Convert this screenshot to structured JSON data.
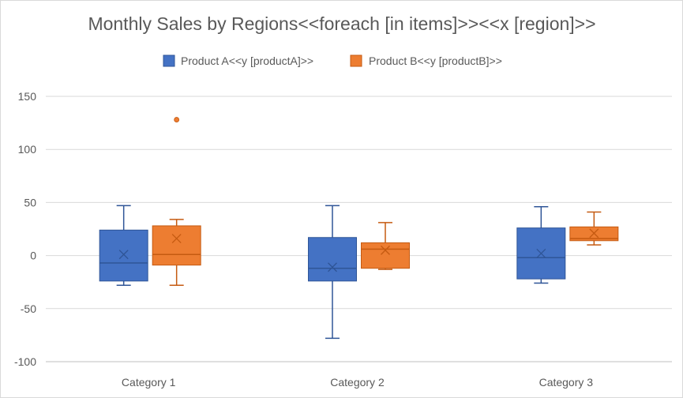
{
  "chart_data": {
    "type": "box",
    "title": "Monthly Sales by Regions<<foreach [in items]>><<x [region]>>",
    "xlabel": "",
    "ylabel": "",
    "categories": [
      "Category 1",
      "Category 2",
      "Category 3"
    ],
    "ylim": [
      -100,
      150
    ],
    "yticks": [
      150,
      100,
      50,
      0,
      -50,
      -100
    ],
    "grid": true,
    "legend_position": "top",
    "series": [
      {
        "name": "Product A<<y [productA]>>",
        "color": "#4472c4",
        "stroke": "#2f5597",
        "boxes": [
          {
            "category": "Category 1",
            "min": -28,
            "q1": -24,
            "median": -7,
            "q3": 24,
            "max": 47,
            "mean": 1,
            "outliers": []
          },
          {
            "category": "Category 2",
            "min": -78,
            "q1": -24,
            "median": -12,
            "q3": 17,
            "max": 47,
            "mean": -11,
            "outliers": []
          },
          {
            "category": "Category 3",
            "min": -26,
            "q1": -22,
            "median": -2,
            "q3": 26,
            "max": 46,
            "mean": 2,
            "outliers": []
          }
        ]
      },
      {
        "name": "Product B<<y [productB]>>",
        "color": "#ed7d31",
        "stroke": "#c55a11",
        "boxes": [
          {
            "category": "Category 1",
            "min": -28,
            "q1": -9,
            "median": 1,
            "q3": 28,
            "max": 34,
            "mean": 16,
            "outliers": [
              128
            ]
          },
          {
            "category": "Category 2",
            "min": -13,
            "q1": -12,
            "median": 6,
            "q3": 12,
            "max": 31,
            "mean": 5,
            "outliers": []
          },
          {
            "category": "Category 3",
            "min": 10,
            "q1": 14,
            "median": 16,
            "q3": 27,
            "max": 41,
            "mean": 21,
            "outliers": []
          }
        ]
      }
    ]
  }
}
